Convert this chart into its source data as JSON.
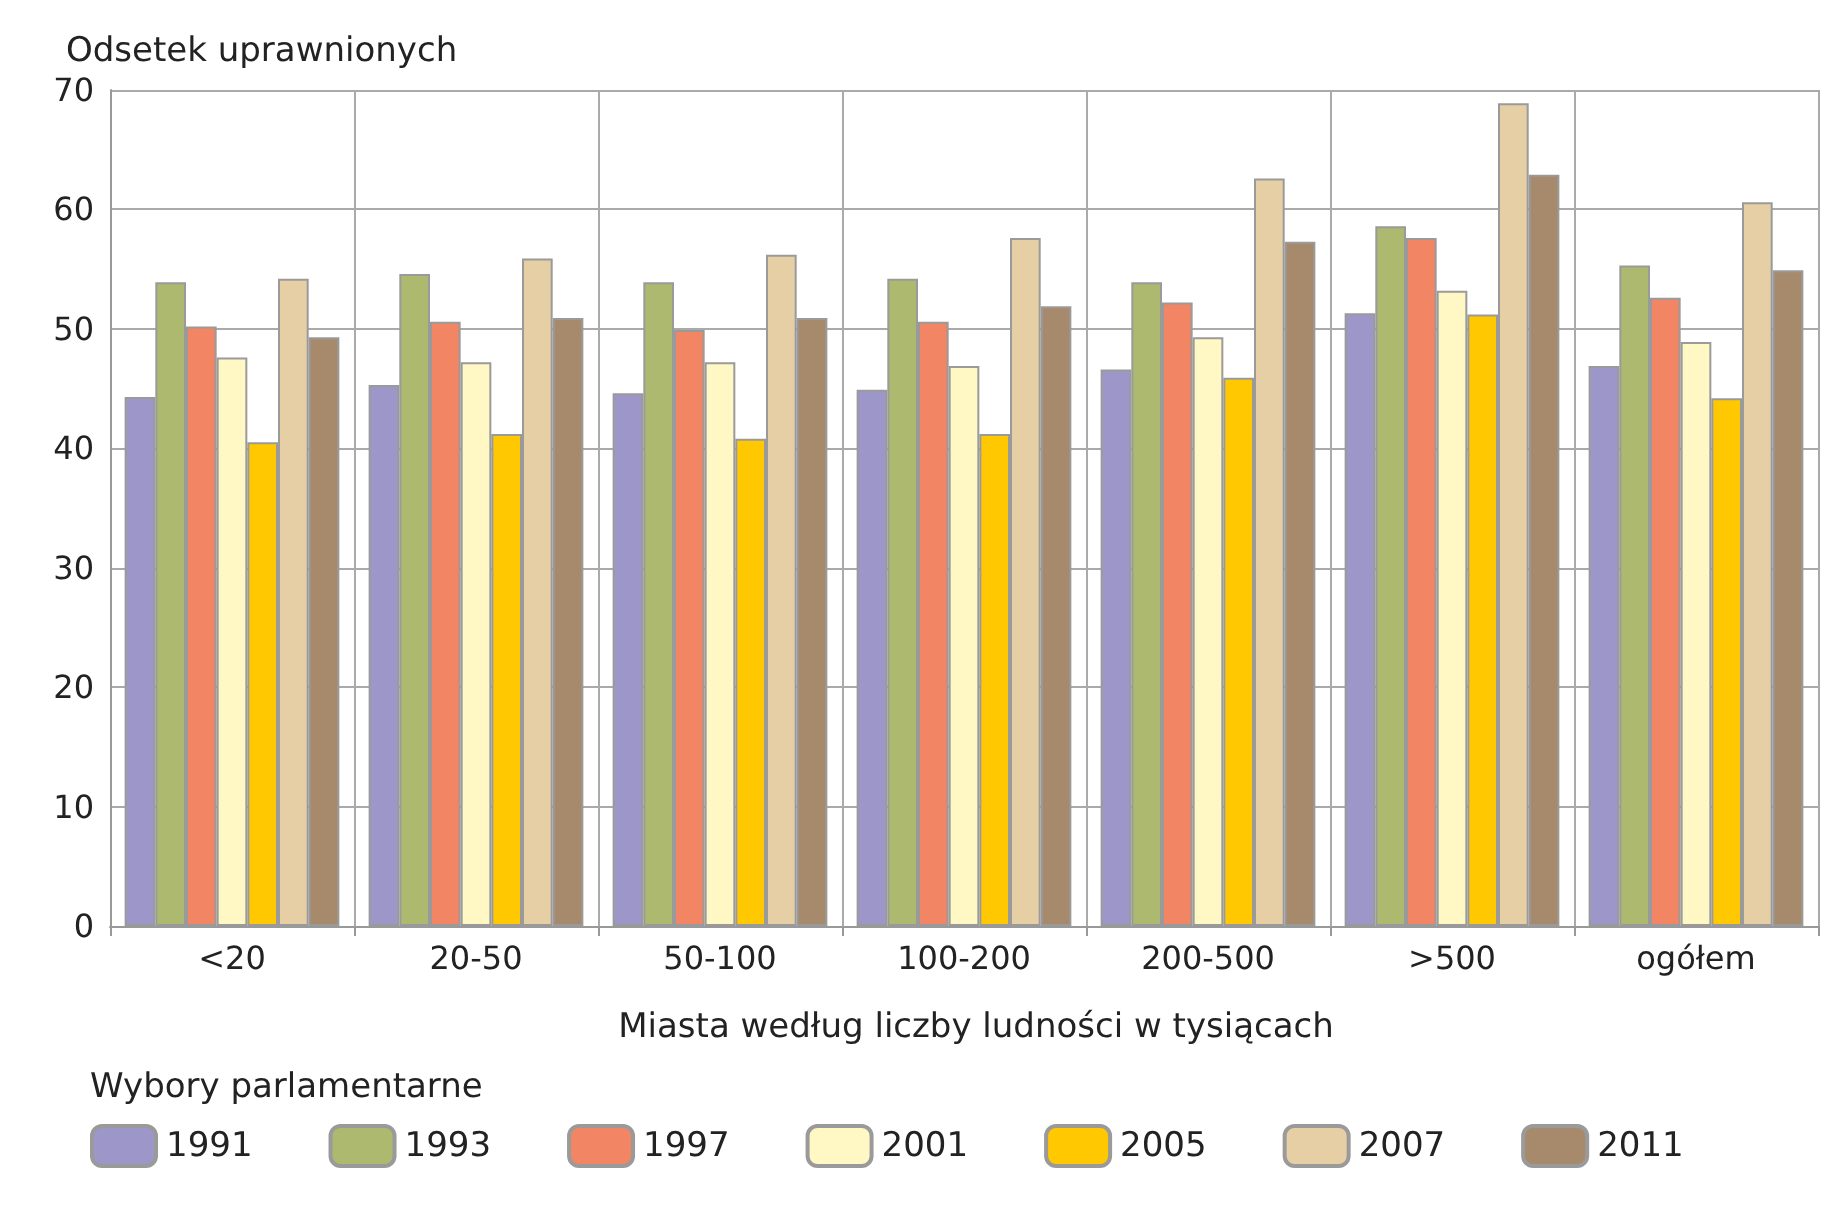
{
  "chart_data": {
    "type": "bar",
    "ylabel": "Odsetek uprawnionych",
    "xlabel": "Miasta według liczby ludności w tysiącach",
    "legend_title": "Wybory parlamentarne",
    "categories": [
      "<20",
      "20-50",
      "50-100",
      "100-200",
      "200-500",
      ">500",
      "ogółem"
    ],
    "series": [
      {
        "name": "1991",
        "color": "#9c97c8",
        "values": [
          44.3,
          45.3,
          44.6,
          44.9,
          46.6,
          51.3,
          46.9
        ]
      },
      {
        "name": "1993",
        "color": "#adb96f",
        "values": [
          53.9,
          54.6,
          53.9,
          54.2,
          53.9,
          58.6,
          55.3
        ]
      },
      {
        "name": "1997",
        "color": "#f28563",
        "values": [
          50.2,
          50.6,
          49.9,
          50.6,
          52.2,
          57.6,
          52.6
        ]
      },
      {
        "name": "2001",
        "color": "#fff8c4",
        "values": [
          47.6,
          47.2,
          47.2,
          46.9,
          49.3,
          53.2,
          48.9
        ]
      },
      {
        "name": "2005",
        "color": "#ffc800",
        "values": [
          40.5,
          41.2,
          40.8,
          41.2,
          45.9,
          51.2,
          44.2
        ]
      },
      {
        "name": "2007",
        "color": "#e6cfa5",
        "values": [
          54.2,
          55.9,
          56.2,
          57.6,
          62.6,
          68.9,
          60.6
        ]
      },
      {
        "name": "2011",
        "color": "#a68a6b",
        "values": [
          49.3,
          50.9,
          50.9,
          51.9,
          57.3,
          62.9,
          54.9
        ]
      }
    ],
    "ylim": [
      0,
      70
    ],
    "yticks": [
      0,
      10,
      20,
      30,
      40,
      50,
      60,
      70
    ],
    "grid": true,
    "legend": "bottom"
  }
}
